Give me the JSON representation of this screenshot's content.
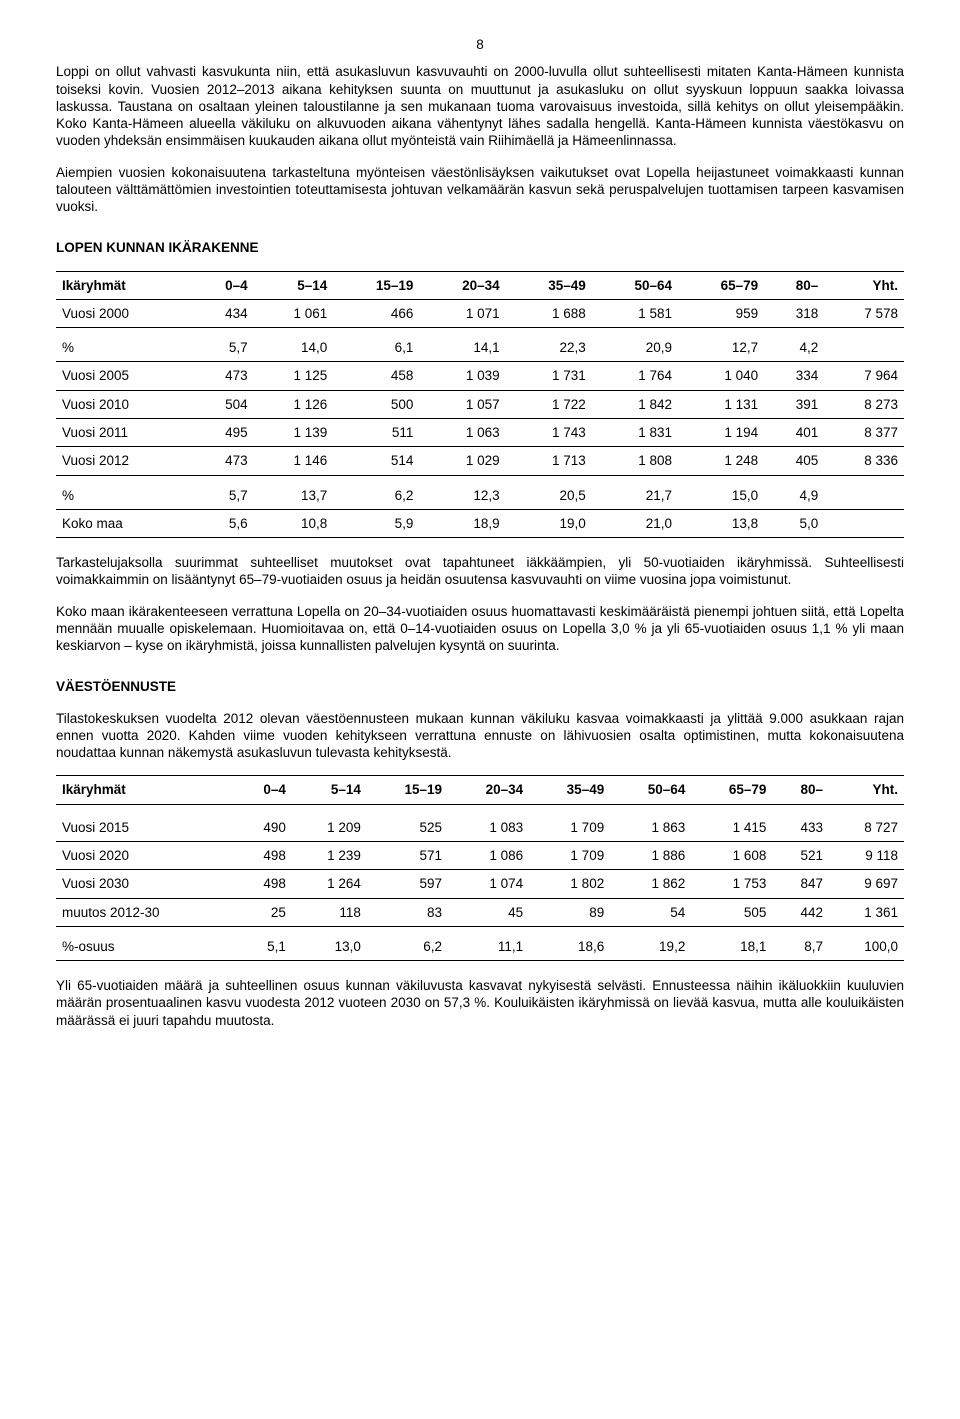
{
  "pageNumber": "8",
  "para1": "Loppi on ollut vahvasti kasvukunta niin, että asukasluvun kasvuvauhti on 2000-luvulla ollut suhteellisesti mitaten Kanta-Hämeen kunnista toiseksi kovin. Vuosien 2012–2013 aikana kehityksen suunta on muuttunut ja asukasluku on ollut syyskuun loppuun saakka loivassa laskussa. Taustana on osaltaan yleinen taloustilanne ja sen mukanaan tuoma varovaisuus investoida, sillä kehitys on ollut yleisempääkin. Koko Kanta-Hämeen alueella väkiluku on alkuvuoden aikana vähentynyt lähes sadalla hengellä. Kanta-Hämeen kunnista väestökasvu on vuoden yhdeksän ensimmäisen kuukauden aikana ollut myönteistä vain Riihimäellä ja Hämeenlinnassa.",
  "para2": "Aiempien vuosien kokonaisuutena tarkasteltuna myönteisen väestönlisäyksen vaikutukset ovat Lopella heijastuneet voimakkaasti kunnan talouteen välttämättömien investointien toteuttamisesta johtuvan velkamäärän kasvun sekä peruspalvelujen tuottamisen tarpeen kasvamisen vuoksi.",
  "heading1": "LOPEN KUNNAN IKÄRAKENNE",
  "table1": {
    "headers": [
      "Ikäryhmät",
      "0–4",
      "5–14",
      "15–19",
      "20–34",
      "35–49",
      "50–64",
      "65–79",
      "80–",
      "Yht."
    ],
    "rows": [
      [
        "Vuosi 2000",
        "434",
        "1 061",
        "466",
        "1 071",
        "1 688",
        "1 581",
        "959",
        "318",
        "7 578"
      ],
      [
        "%",
        "5,7",
        "14,0",
        "6,1",
        "14,1",
        "22,3",
        "20,9",
        "12,7",
        "4,2",
        ""
      ],
      [
        "Vuosi 2005",
        "473",
        "1 125",
        "458",
        "1 039",
        "1 731",
        "1 764",
        "1 040",
        "334",
        "7 964"
      ],
      [
        "Vuosi 2010",
        "504",
        "1 126",
        "500",
        "1 057",
        "1 722",
        "1 842",
        "1 131",
        "391",
        "8 273"
      ],
      [
        "Vuosi 2011",
        "495",
        "1 139",
        "511",
        "1 063",
        "1 743",
        "1 831",
        "1 194",
        "401",
        "8 377"
      ],
      [
        "Vuosi 2012",
        "473",
        "1 146",
        "514",
        "1 029",
        "1 713",
        "1 808",
        "1 248",
        "405",
        "8 336"
      ],
      [
        "%",
        "5,7",
        "13,7",
        "6,2",
        "12,3",
        "20,5",
        "21,7",
        "15,0",
        "4,9",
        ""
      ],
      [
        "Koko maa",
        "5,6",
        "10,8",
        "5,9",
        "18,9",
        "19,0",
        "21,0",
        "13,8",
        "5,0",
        ""
      ]
    ]
  },
  "para3": "Tarkastelujaksolla suurimmat suhteelliset muutokset ovat tapahtuneet iäkkäämpien, yli 50-vuotiaiden ikäryhmissä. Suhteellisesti voimakkaimmin on lisääntynyt 65–79-vuotiaiden osuus ja heidän osuutensa kasvuvauhti on viime vuosina jopa voimistunut.",
  "para4": "Koko maan ikärakenteeseen verrattuna Lopella on 20–34-vuotiaiden osuus huomattavasti keskimääräistä pienempi johtuen siitä, että Lopelta mennään muualle opiskelemaan. Huomioitavaa on, että 0–14-vuotiaiden osuus on Lopella 3,0 % ja yli 65-vuotiaiden osuus 1,1 % yli maan keskiarvon – kyse on ikäryhmistä, joissa kunnallisten palvelujen kysyntä on suurinta.",
  "heading2": "VÄESTÖENNUSTE",
  "para5": "Tilastokeskuksen vuodelta 2012 olevan väestöennusteen mukaan kunnan väkiluku kasvaa voimakkaasti ja ylittää 9.000 asukkaan rajan ennen vuotta 2020. Kahden viime vuoden kehitykseen verrattuna ennuste on lähivuosien osalta optimistinen, mutta kokonaisuutena noudattaa kunnan näkemystä asukasluvun tulevasta kehityksestä.",
  "table2": {
    "headers": [
      "Ikäryhmät",
      "0–4",
      "5–14",
      "15–19",
      "20–34",
      "35–49",
      "50–64",
      "65–79",
      "80–",
      "Yht."
    ],
    "rows": [
      [
        "Vuosi 2015",
        "490",
        "1 209",
        "525",
        "1 083",
        "1 709",
        "1 863",
        "1 415",
        "433",
        "8 727"
      ],
      [
        "Vuosi 2020",
        "498",
        "1 239",
        "571",
        "1 086",
        "1 709",
        "1 886",
        "1 608",
        "521",
        "9 118"
      ],
      [
        "Vuosi 2030",
        "498",
        "1 264",
        "597",
        "1 074",
        "1 802",
        "1 862",
        "1 753",
        "847",
        "9 697"
      ],
      [
        "muutos 2012-30",
        "25",
        "118",
        "83",
        "45",
        "89",
        "54",
        "505",
        "442",
        "1 361"
      ],
      [
        "%-osuus",
        "5,1",
        "13,0",
        "6,2",
        "11,1",
        "18,6",
        "19,2",
        "18,1",
        "8,7",
        "100,0"
      ]
    ]
  },
  "para6": "Yli 65-vuotiaiden määrä ja suhteellinen osuus kunnan väkiluvusta kasvavat nykyisestä selvästi. Ennusteessa näihin ikäluokkiin kuuluvien määrän prosentuaalinen kasvu vuodesta 2012 vuoteen 2030 on 57,3 %. Kouluikäisten ikäryhmissä on lievää kasvua, mutta alle kouluikäisten määrässä ei juuri tapahdu muutosta."
}
